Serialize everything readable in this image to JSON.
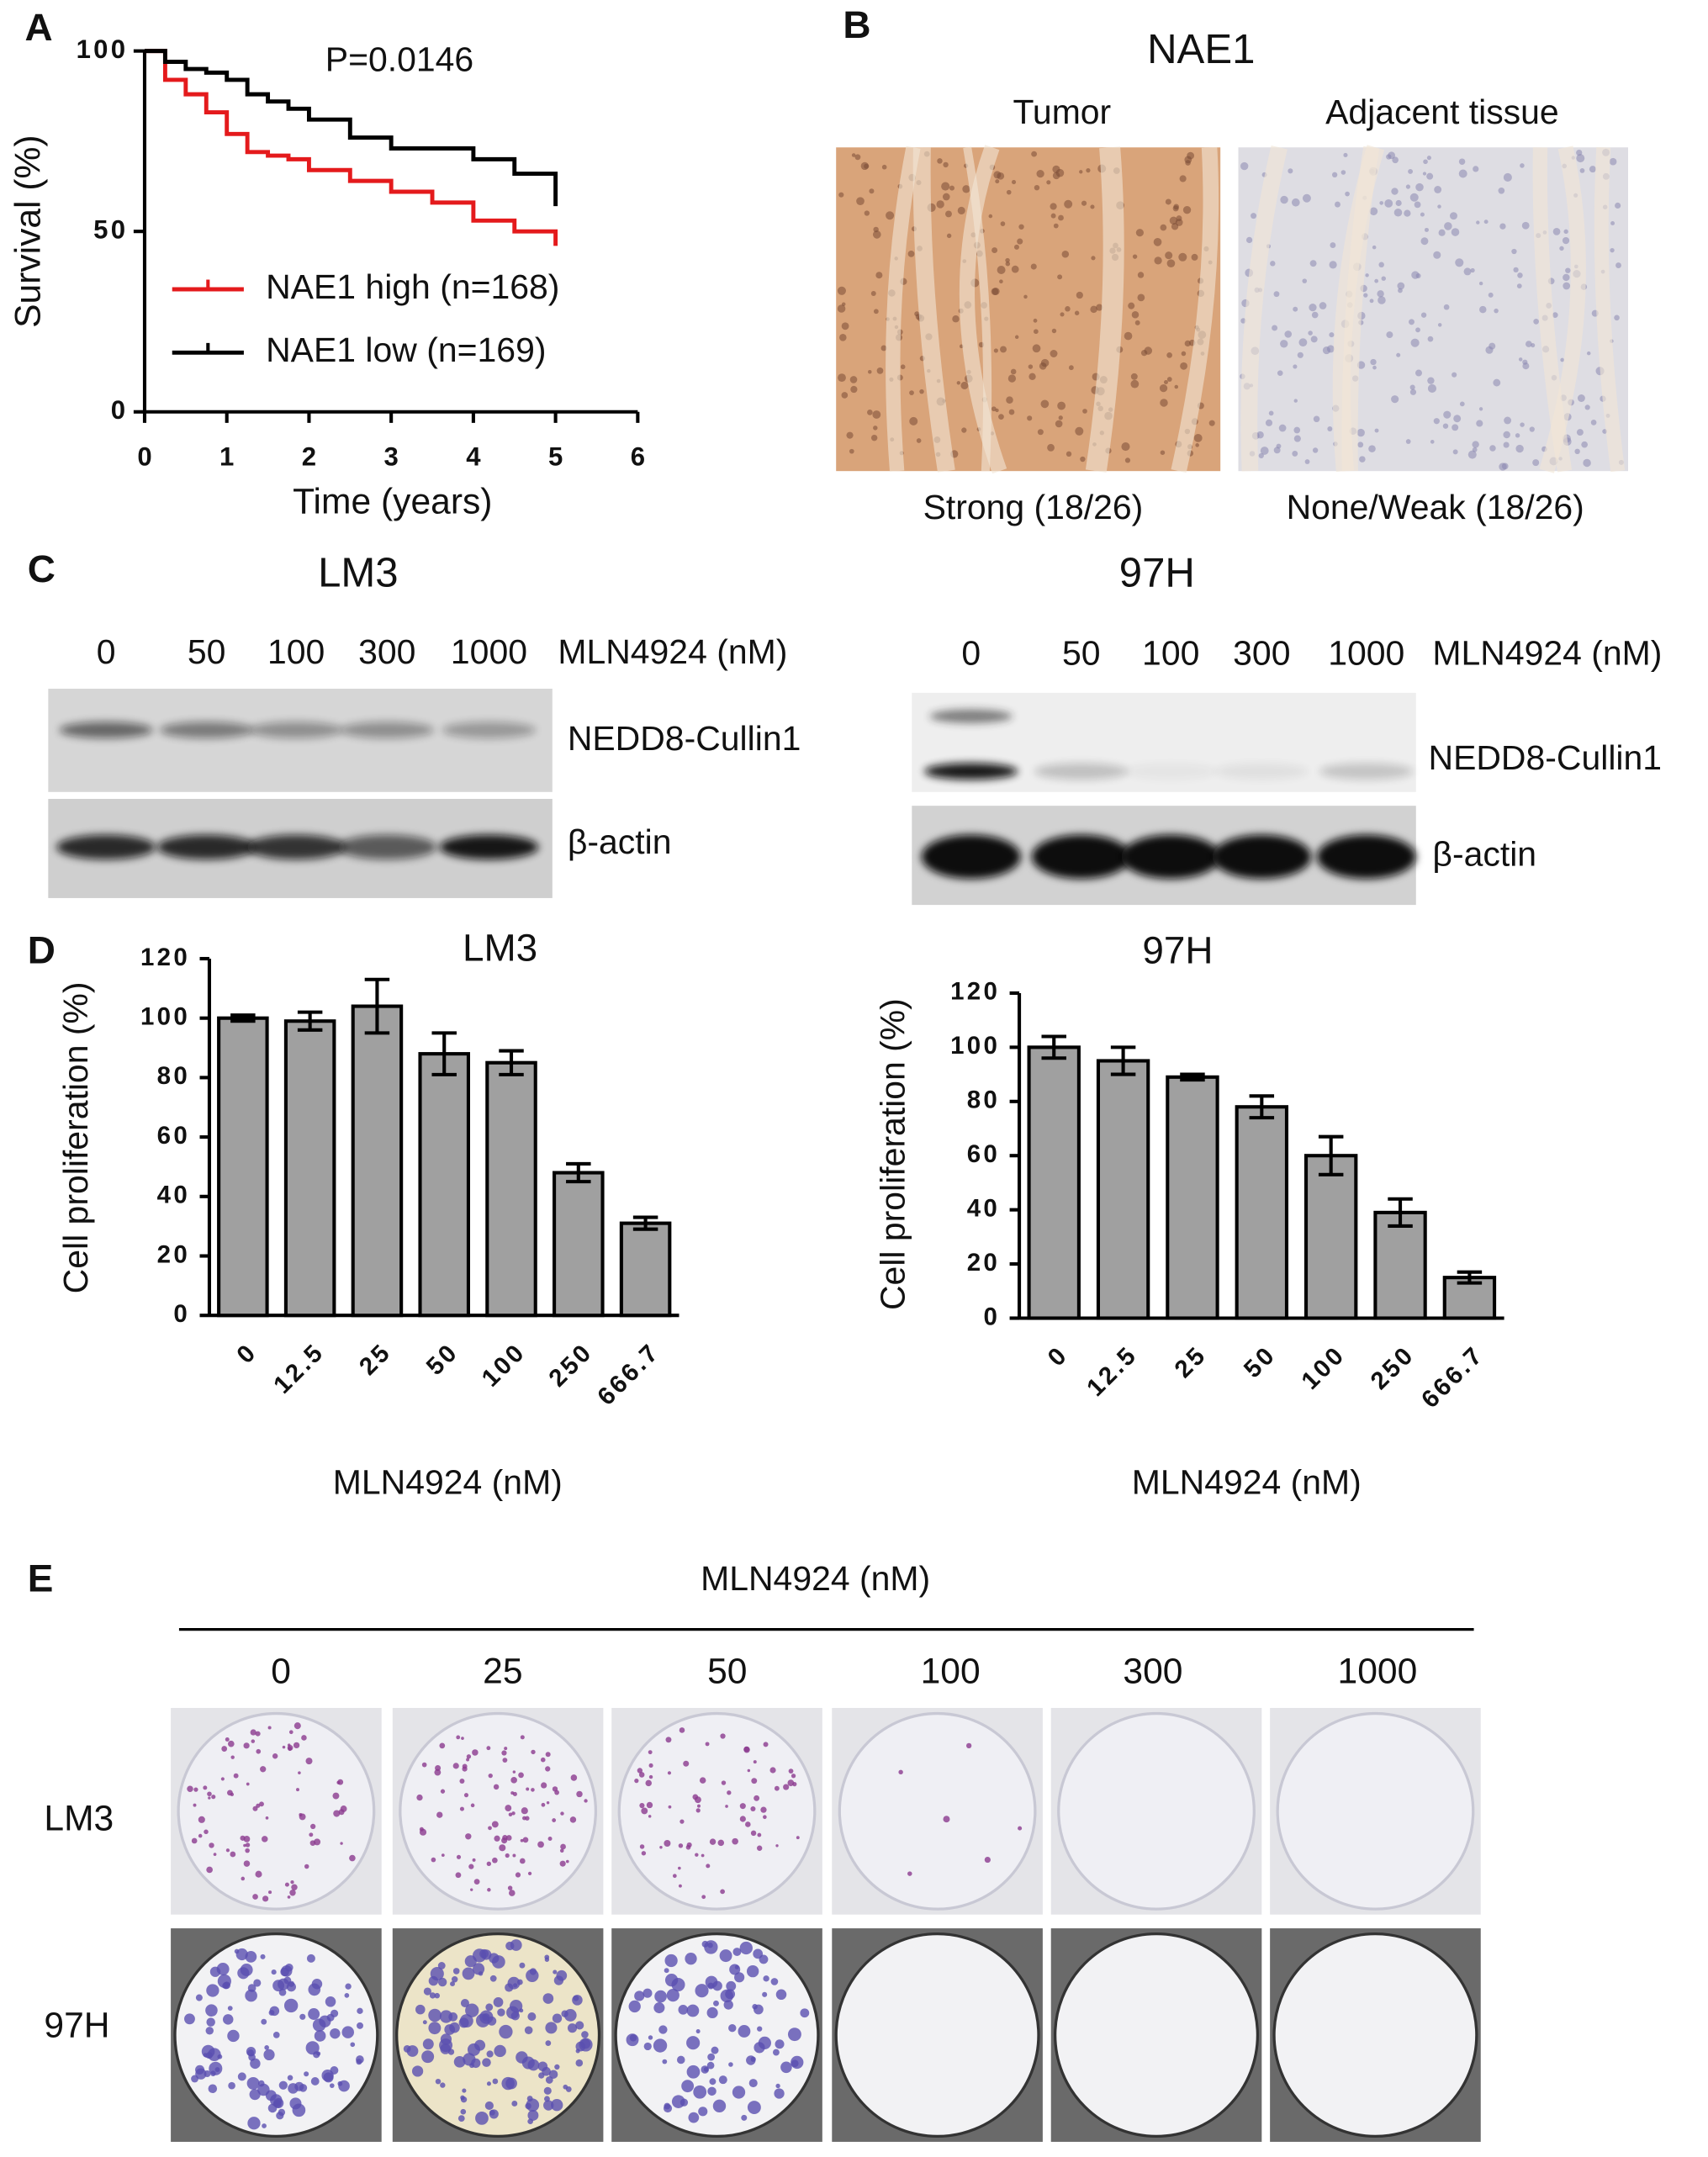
{
  "chart_data": [
    {
      "type": "line",
      "panel": "A",
      "annotation": "P=0.0146",
      "x_label": "Time (years)",
      "y_label": "Survival (%)",
      "step": true,
      "x": [
        0,
        0.25,
        0.5,
        0.75,
        1,
        1.25,
        1.5,
        1.75,
        2,
        2.5,
        3,
        3.5,
        4,
        4.5,
        5
      ],
      "series": [
        {
          "name": "NAE1 high (n=168)",
          "color": "#e41a1c",
          "values": [
            100,
            92,
            88,
            83,
            77,
            72,
            71,
            70,
            67,
            64,
            61,
            58,
            53,
            50,
            46
          ]
        },
        {
          "name": "NAE1 low (n=169)",
          "color": "#000000",
          "values": [
            100,
            97,
            95,
            94,
            92,
            88,
            86,
            84,
            81,
            76,
            73,
            73,
            70,
            66,
            57
          ]
        }
      ],
      "xlim": [
        0,
        6
      ],
      "xticks": [
        0,
        1,
        2,
        3,
        4,
        5,
        6
      ],
      "ylim": [
        0,
        100
      ],
      "yticks": [
        0,
        50,
        100
      ]
    },
    {
      "type": "bar",
      "panel": "D",
      "title": "LM3",
      "x_label": "MLN4924 (nM)",
      "y_label": "Cell proliferation (%)",
      "categories": [
        "0",
        "12.5",
        "25",
        "50",
        "100",
        "250",
        "666.7"
      ],
      "values": [
        100,
        99,
        104,
        88,
        85,
        48,
        31
      ],
      "errors": [
        1,
        3,
        9,
        7,
        4,
        3,
        2
      ],
      "color": "#a0a0a0",
      "ylim": [
        0,
        120
      ],
      "yticks": [
        0,
        20,
        40,
        60,
        80,
        100,
        120
      ]
    },
    {
      "type": "bar",
      "title": "97H",
      "x_label": "MLN4924 (nM)",
      "y_label": "Cell proliferation (%)",
      "categories": [
        "0",
        "12.5",
        "25",
        "50",
        "100",
        "250",
        "666.7"
      ],
      "values": [
        100,
        95,
        89,
        78,
        60,
        39,
        15
      ],
      "errors": [
        4,
        5,
        1,
        4,
        7,
        5,
        2
      ],
      "color": "#a0a0a0",
      "ylim": [
        0,
        120
      ],
      "yticks": [
        0,
        20,
        40,
        60,
        80,
        100,
        120
      ]
    }
  ],
  "panel_b": {
    "panel": "B",
    "title": "NAE1",
    "images": [
      {
        "label": "Tumor",
        "caption": "Strong (18/26)"
      },
      {
        "label": "Adjacent tissue",
        "caption": "None/Weak (18/26)"
      }
    ]
  },
  "panel_c": {
    "panel": "C",
    "blots": [
      {
        "title": "LM3",
        "doses": [
          "0",
          "50",
          "100",
          "300",
          "1000"
        ],
        "treatment": "MLN4924 (nM)",
        "bands": [
          "NEDD8-Cullin1",
          "β-actin"
        ]
      },
      {
        "title": "97H",
        "doses": [
          "0",
          "50",
          "100",
          "300",
          "1000"
        ],
        "treatment": "MLN4924 (nM)",
        "bands": [
          "NEDD8-Cullin1",
          "β-actin"
        ]
      }
    ]
  },
  "panel_e": {
    "panel": "E",
    "treatment": "MLN4924 (nM)",
    "doses": [
      "0",
      "25",
      "50",
      "100",
      "300",
      "1000"
    ],
    "rows": [
      "LM3",
      "97H"
    ]
  }
}
